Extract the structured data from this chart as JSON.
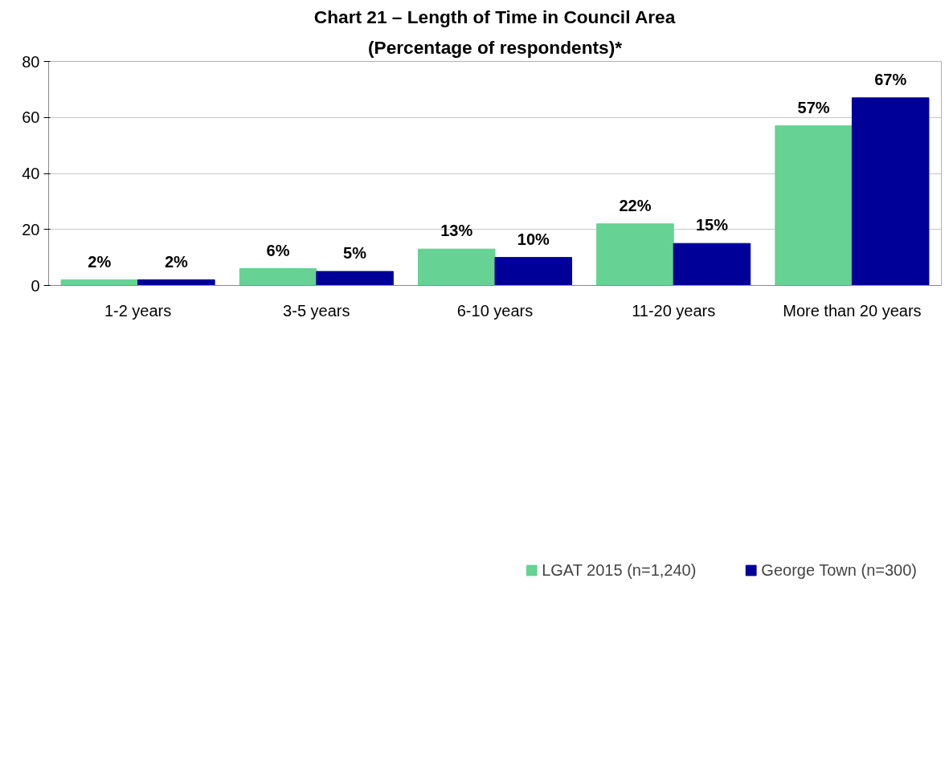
{
  "chart_data": {
    "type": "bar",
    "title": "Chart 21 – Length of Time in Council Area",
    "subtitle": "(Percentage of respondents)*",
    "categories": [
      "1-2 years",
      "3-5 years",
      "6-10 years",
      "11-20 years",
      "More than 20 years"
    ],
    "series": [
      {
        "name": "LGAT 2015 (n=1,240)",
        "color": "#66d293",
        "values": [
          2,
          6,
          13,
          22,
          57
        ],
        "value_labels": [
          "2%",
          "6%",
          "13%",
          "22%",
          "57%"
        ]
      },
      {
        "name": "George Town (n=300)",
        "color": "#000099",
        "values": [
          2,
          5,
          10,
          15,
          67
        ],
        "value_labels": [
          "2%",
          "5%",
          "10%",
          "15%",
          "67%"
        ]
      }
    ],
    "ylim": [
      0,
      80
    ],
    "yticks": [
      0,
      20,
      40,
      60,
      80
    ],
    "grid": "y",
    "legend": "bottom"
  }
}
